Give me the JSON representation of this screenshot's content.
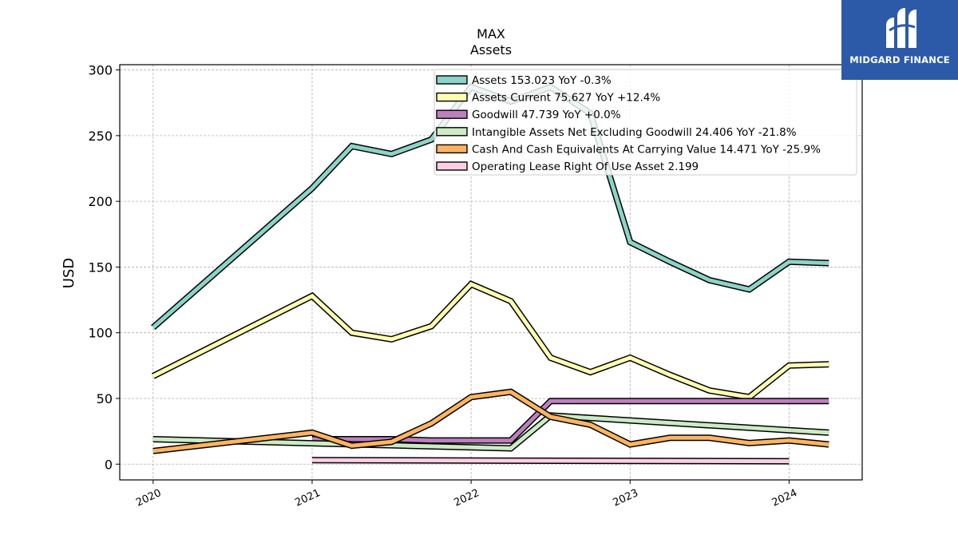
{
  "logo": {
    "text": "MIDGARD FINANCE",
    "background": "#2d5aa8"
  },
  "chart_data": {
    "type": "line",
    "title": "MAX",
    "subtitle": "Assets",
    "ylabel": "USD",
    "xlabel": "",
    "x_ticks": [
      "2020",
      "2021",
      "2022",
      "2023",
      "2024"
    ],
    "y_ticks": [
      0,
      50,
      100,
      150,
      200,
      250,
      300
    ],
    "ylim": [
      -12,
      304
    ],
    "xlim": [
      2019.79,
      2024.46
    ],
    "grid": true,
    "legend_position": "top-right",
    "series": [
      {
        "name": "Assets",
        "legend": "Assets  153.023 YoY -0.3%",
        "color": "#8dd3c7",
        "x": [
          2020.0,
          2021.0,
          2021.25,
          2021.5,
          2021.75,
          2022.0,
          2022.25,
          2022.5,
          2022.75,
          2023.0,
          2023.25,
          2023.5,
          2023.75,
          2024.0,
          2024.25
        ],
        "y": [
          104,
          210,
          242,
          236,
          247,
          287,
          276,
          287,
          267,
          169,
          154,
          140,
          133,
          154,
          153
        ]
      },
      {
        "name": "Assets Current",
        "legend": "Assets Current  75.627 YoY +12.4%",
        "color": "#ffffb3",
        "x": [
          2020.0,
          2021.0,
          2021.25,
          2021.5,
          2021.75,
          2022.0,
          2022.25,
          2022.5,
          2022.75,
          2023.0,
          2023.25,
          2023.5,
          2023.75,
          2024.0,
          2024.25
        ],
        "y": [
          67,
          128,
          100,
          95,
          105,
          137,
          124,
          81,
          70,
          81,
          68,
          56,
          51,
          75,
          76
        ]
      },
      {
        "name": "Goodwill",
        "legend": "Goodwill  47.739 YoY +0.0%",
        "color": "#bc80bd",
        "x": [
          2021.0,
          2021.25,
          2021.5,
          2021.75,
          2022.0,
          2022.25,
          2022.5,
          2022.75,
          2023.0,
          2023.25,
          2023.5,
          2023.75,
          2024.0,
          2024.25
        ],
        "y": [
          19,
          19,
          19,
          18,
          18,
          18,
          48,
          48,
          48,
          48,
          48,
          48,
          48,
          48
        ]
      },
      {
        "name": "Intangible Assets Net Excluding Goodwill",
        "legend": "Intangible Assets Net Excluding Goodwill  24.406 YoY -21.8%",
        "color": "#ccebc5",
        "x": [
          2020.0,
          2022.25,
          2022.5,
          2024.25
        ],
        "y": [
          19,
          12,
          37,
          24
        ]
      },
      {
        "name": "Cash And Cash Equivalents At Carrying Value",
        "legend": "Cash And Cash Equivalents At Carrying Value  14.471 YoY -25.9%",
        "color": "#fdb462",
        "x": [
          2020.0,
          2021.0,
          2021.25,
          2021.5,
          2021.75,
          2022.0,
          2022.25,
          2022.5,
          2022.75,
          2023.0,
          2023.25,
          2023.5,
          2023.75,
          2024.0,
          2024.25
        ],
        "y": [
          10,
          24,
          14,
          17,
          31,
          51,
          55,
          36,
          30,
          15,
          20,
          20,
          16,
          18,
          15
        ]
      },
      {
        "name": "Operating Lease Right Of Use Asset",
        "legend": "Operating Lease Right Of Use Asset  2.199",
        "color": "#fccde5",
        "x": [
          2021.0,
          2024.0
        ],
        "y": [
          3,
          2.2
        ]
      }
    ]
  }
}
